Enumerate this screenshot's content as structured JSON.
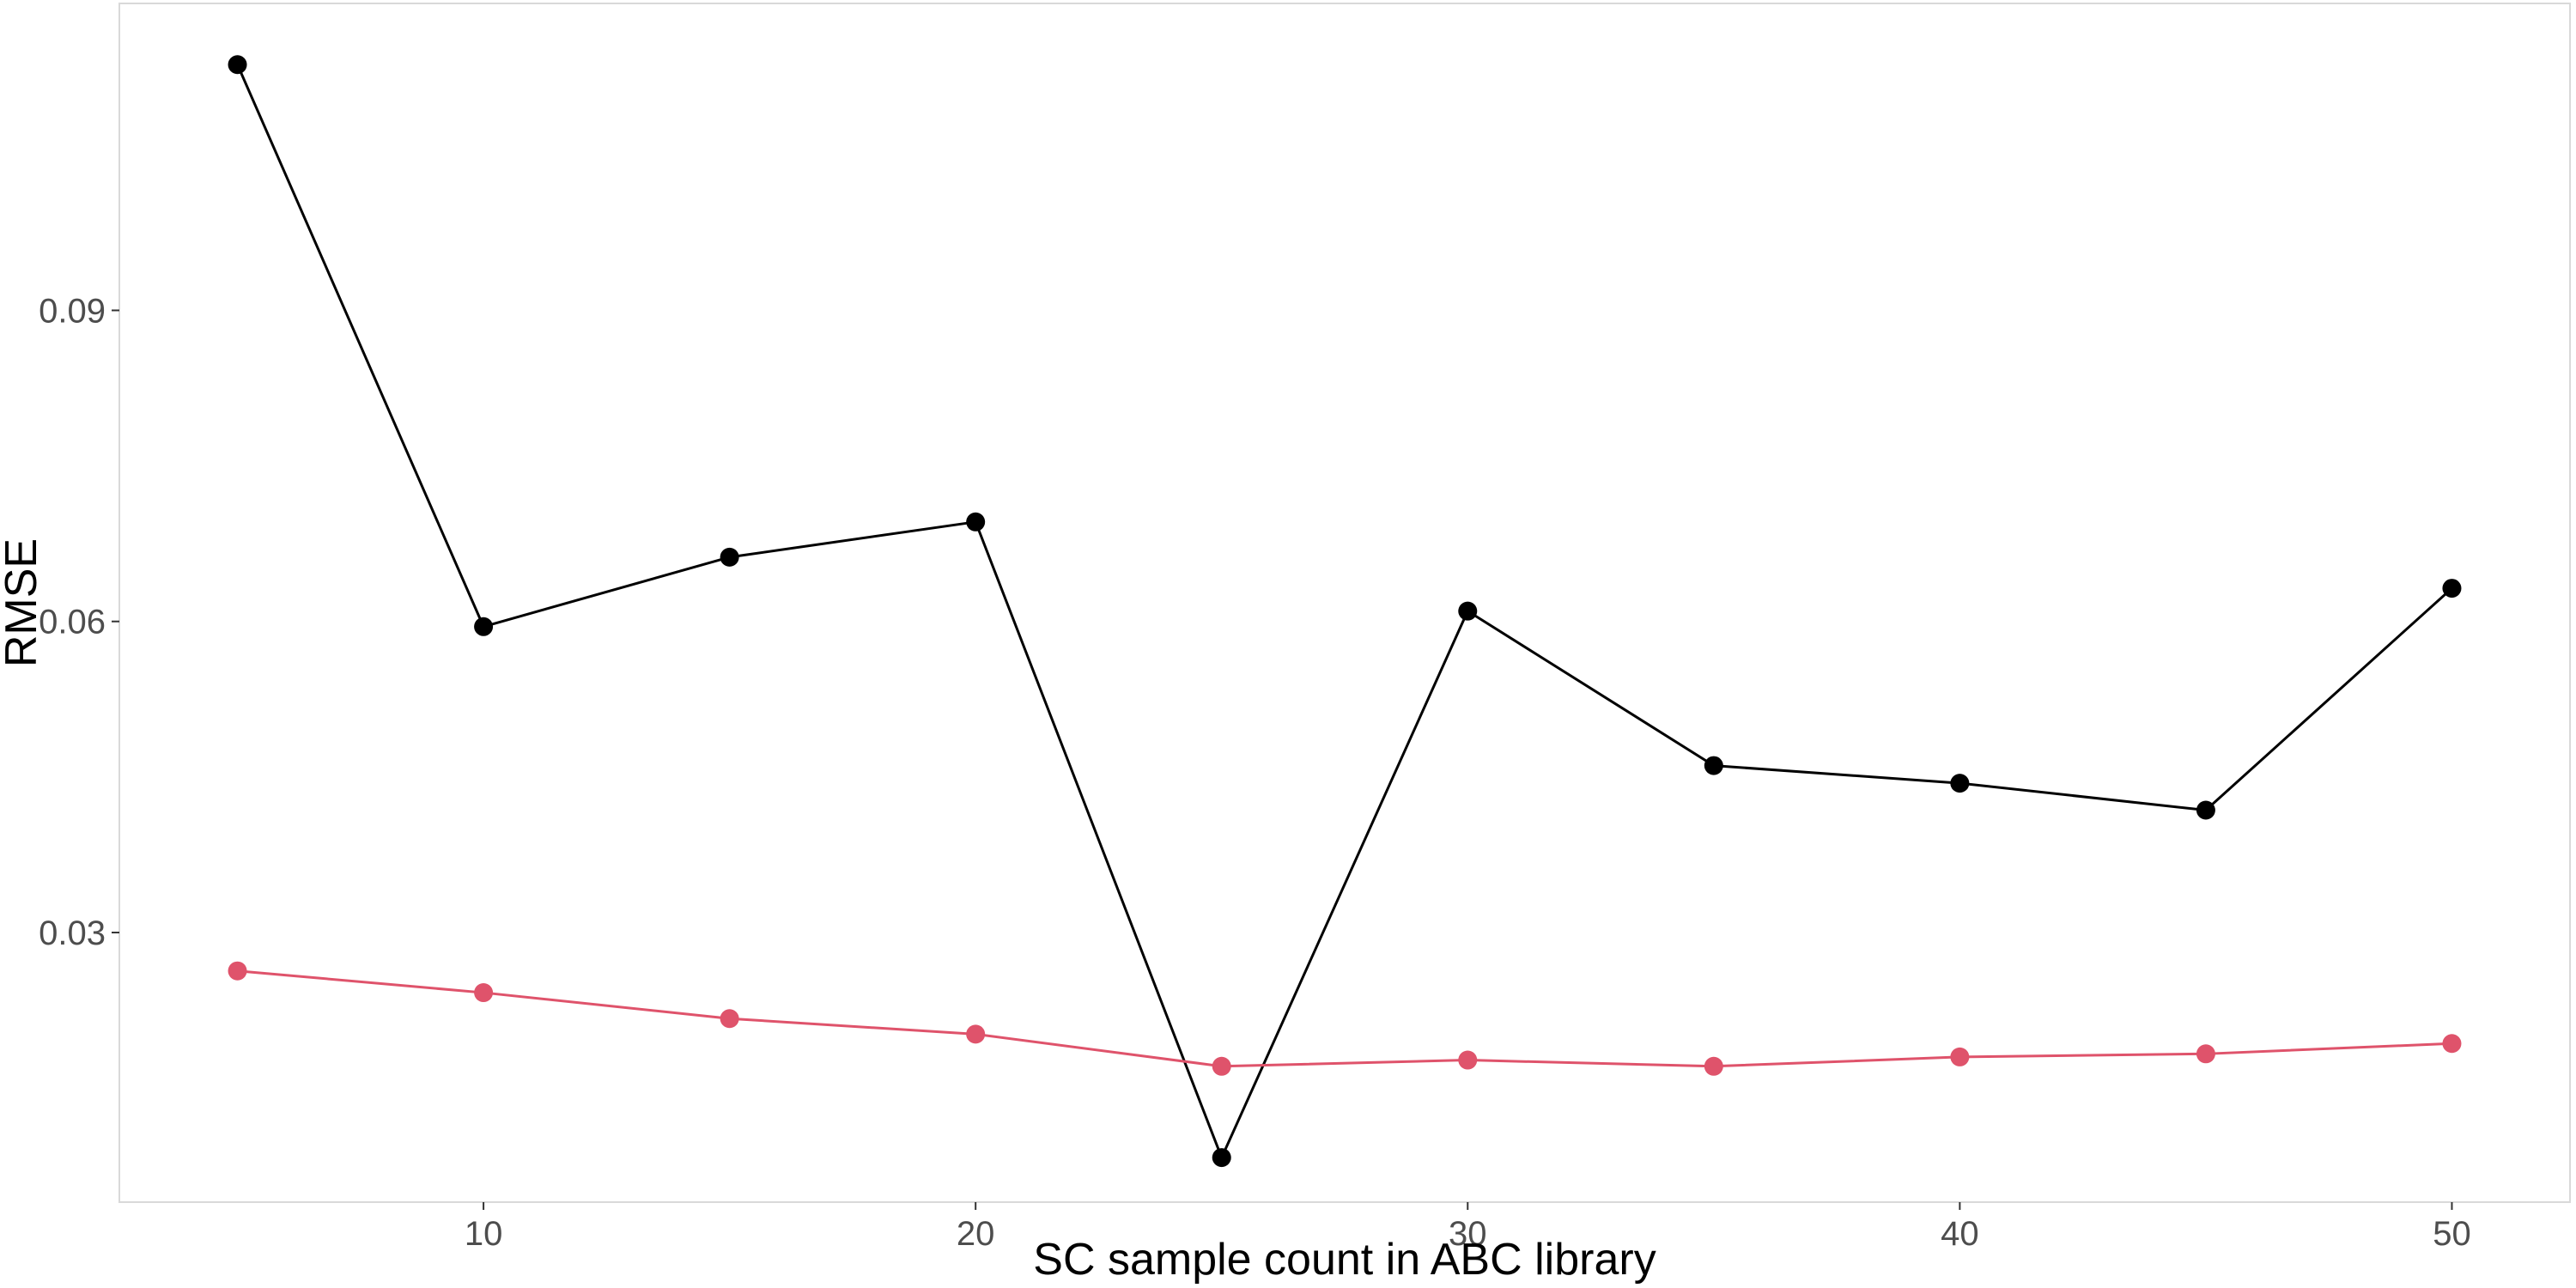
{
  "chart_data": {
    "type": "line",
    "title": "",
    "xlabel": "SC sample count in ABC library",
    "ylabel": "RMSE",
    "x": [
      5,
      10,
      15,
      20,
      25,
      30,
      35,
      40,
      45,
      50
    ],
    "xlim": [
      2.6,
      52.4
    ],
    "ylim": [
      0.004,
      0.1196
    ],
    "xticks": [
      10,
      20,
      30,
      40,
      50
    ],
    "yticks": [
      0.03,
      0.06,
      0.09
    ],
    "ytick_labels": [
      "0.03",
      "0.06",
      "0.09"
    ],
    "grid": false,
    "legend": "none",
    "series": [
      {
        "color": "#000000",
        "values": [
          0.1137,
          0.0595,
          0.0662,
          0.0696,
          0.0083,
          0.061,
          0.0461,
          0.0444,
          0.0418,
          0.0632
        ]
      },
      {
        "color": "#df536b",
        "values": [
          0.0263,
          0.0242,
          0.0217,
          0.0202,
          0.0171,
          0.0177,
          0.0171,
          0.018,
          0.0183,
          0.0193
        ]
      }
    ]
  },
  "colors": {
    "panel_border": "#d9d9d9",
    "tick_text": "#4d4d4d",
    "tick_mark": "#333333"
  }
}
